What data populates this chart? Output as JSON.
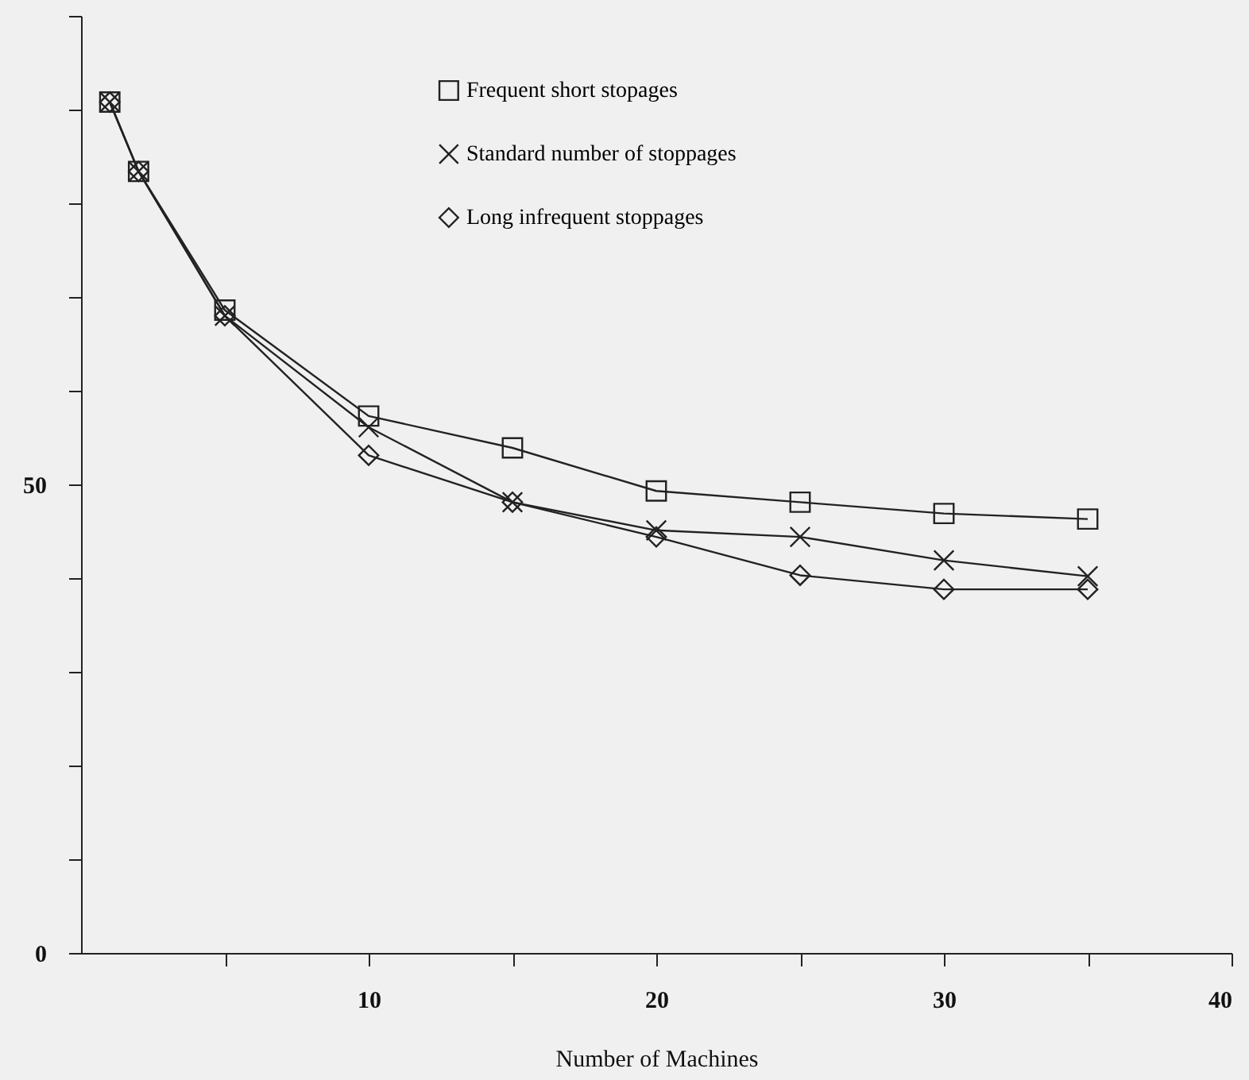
{
  "chart_data": {
    "type": "line",
    "xlabel": "Number of Machines",
    "x": [
      1,
      2,
      5,
      10,
      15,
      20,
      25,
      30,
      35
    ],
    "series": [
      {
        "name": "Frequent short stopages",
        "color": "#222222",
        "marker": "square",
        "values": [
          90.8,
          83.4,
          68.6,
          57.3,
          53.9,
          49.3,
          48.1,
          46.9,
          46.3
        ]
      },
      {
        "name": "Standard number of stoppages",
        "color": "#222222",
        "marker": "cross",
        "values": [
          90.8,
          83.4,
          68.0,
          56.1,
          48.1,
          45.1,
          44.4,
          41.9,
          40.2
        ]
      },
      {
        "name": "Long infrequent stoppages",
        "color": "#222222",
        "marker": "diamond",
        "values": [
          90.8,
          83.4,
          68.0,
          53.1,
          48.1,
          44.4,
          40.3,
          38.8,
          38.8
        ]
      }
    ],
    "xlim": [
      0,
      40
    ],
    "xticks": [
      {
        "value": 5,
        "label": null
      },
      10,
      {
        "value": 15,
        "label": null
      },
      20,
      {
        "value": 25,
        "label": null
      },
      30,
      {
        "value": 35,
        "label": null
      },
      40
    ],
    "ylim": [
      0,
      100
    ],
    "yticks": [
      0,
      {
        "value": 10,
        "label": null
      },
      {
        "value": 20,
        "label": null
      },
      {
        "value": 30,
        "label": null
      },
      {
        "value": 40,
        "label": null
      },
      50,
      {
        "value": 60,
        "label": null
      },
      {
        "value": 70,
        "label": null
      },
      {
        "value": 80,
        "label": null
      },
      {
        "value": 90,
        "label": null
      },
      {
        "value": 100,
        "label": null
      }
    ],
    "grid": false,
    "legend": "top",
    "line_style": "solid"
  }
}
